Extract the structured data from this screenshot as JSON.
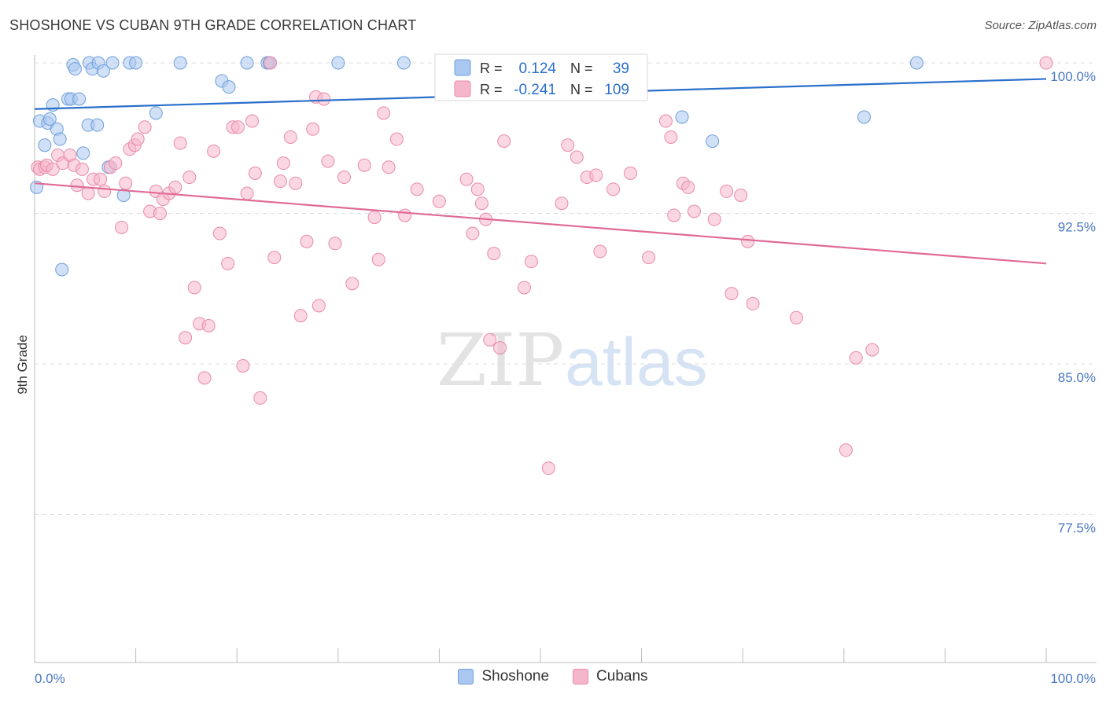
{
  "title": "SHOSHONE VS CUBAN 9TH GRADE CORRELATION CHART",
  "source": "Source: ZipAtlas.com",
  "watermark": {
    "zip": "ZIP",
    "atlas": "atlas"
  },
  "colors": {
    "shoshone_fill": "#a9c7ef",
    "shoshone_stroke": "#6f9fdc",
    "shoshone_line": "#2a6fcb",
    "cubans_fill": "#f5b6cb",
    "cubans_stroke": "#e98aaa",
    "cubans_line": "#e06a96",
    "tick_text": "#4a78c2",
    "grid": "#dddddd"
  },
  "legend": {
    "rows": [
      {
        "r_label": "R =",
        "r_value": "0.124",
        "n_label": "N =",
        "n_value": "39"
      },
      {
        "r_label": "R =",
        "r_value": "-0.241",
        "n_label": "N =",
        "n_value": "109"
      }
    ]
  },
  "chart_data": {
    "type": "scatter",
    "title": "SHOSHONE VS CUBAN 9TH GRADE CORRELATION CHART",
    "xlabel": "",
    "ylabel": "9th Grade",
    "xlim": [
      0,
      100
    ],
    "ylim": [
      71,
      101.2
    ],
    "x_tick_labels": [
      "0.0%",
      "100.0%"
    ],
    "y_ticks": [
      {
        "value": 100,
        "label": "100.0%"
      },
      {
        "value": 92.5,
        "label": "92.5%"
      },
      {
        "value": 85,
        "label": "85.0%"
      },
      {
        "value": 77.5,
        "label": "77.5%"
      }
    ],
    "grid": true,
    "legend_position": "top-center",
    "series": [
      {
        "name": "Shoshone",
        "r": 0.124,
        "n": 39,
        "trend": {
          "x": [
            0,
            100
          ],
          "y": [
            97.7,
            99.2
          ]
        },
        "points": [
          {
            "x": 0.2,
            "y": 93.8
          },
          {
            "x": 0.5,
            "y": 97.1
          },
          {
            "x": 1.0,
            "y": 95.9
          },
          {
            "x": 1.3,
            "y": 97.0
          },
          {
            "x": 1.5,
            "y": 97.2
          },
          {
            "x": 1.8,
            "y": 97.9
          },
          {
            "x": 2.2,
            "y": 96.7
          },
          {
            "x": 2.5,
            "y": 96.2
          },
          {
            "x": 2.7,
            "y": 89.7
          },
          {
            "x": 3.3,
            "y": 98.2
          },
          {
            "x": 3.6,
            "y": 98.2
          },
          {
            "x": 3.8,
            "y": 99.9
          },
          {
            "x": 4.0,
            "y": 99.7
          },
          {
            "x": 4.4,
            "y": 98.2
          },
          {
            "x": 4.8,
            "y": 95.5
          },
          {
            "x": 5.3,
            "y": 96.9
          },
          {
            "x": 5.4,
            "y": 100.0
          },
          {
            "x": 5.7,
            "y": 99.7
          },
          {
            "x": 6.2,
            "y": 96.9
          },
          {
            "x": 6.3,
            "y": 100.0
          },
          {
            "x": 6.8,
            "y": 99.6
          },
          {
            "x": 7.3,
            "y": 94.8
          },
          {
            "x": 7.7,
            "y": 100.0
          },
          {
            "x": 8.8,
            "y": 93.4
          },
          {
            "x": 9.4,
            "y": 100.0
          },
          {
            "x": 10.0,
            "y": 100.0
          },
          {
            "x": 12.0,
            "y": 97.5
          },
          {
            "x": 14.4,
            "y": 100.0
          },
          {
            "x": 18.5,
            "y": 99.1
          },
          {
            "x": 19.2,
            "y": 98.8
          },
          {
            "x": 21.0,
            "y": 100.0
          },
          {
            "x": 23.0,
            "y": 100.0
          },
          {
            "x": 23.2,
            "y": 100.0
          },
          {
            "x": 30.0,
            "y": 100.0
          },
          {
            "x": 36.5,
            "y": 100.0
          },
          {
            "x": 64.0,
            "y": 97.3
          },
          {
            "x": 67.0,
            "y": 96.1
          },
          {
            "x": 82.0,
            "y": 97.3
          },
          {
            "x": 87.2,
            "y": 100.0
          }
        ]
      },
      {
        "name": "Cubans",
        "r": -0.241,
        "n": 109,
        "trend": {
          "x": [
            0,
            100
          ],
          "y": [
            94.0,
            90.0
          ]
        },
        "points": [
          {
            "x": 0.3,
            "y": 94.8
          },
          {
            "x": 0.5,
            "y": 94.7
          },
          {
            "x": 1.0,
            "y": 94.8
          },
          {
            "x": 1.2,
            "y": 94.9
          },
          {
            "x": 1.8,
            "y": 94.7
          },
          {
            "x": 2.3,
            "y": 95.4
          },
          {
            "x": 2.8,
            "y": 95.0
          },
          {
            "x": 3.5,
            "y": 95.4
          },
          {
            "x": 3.9,
            "y": 94.9
          },
          {
            "x": 4.2,
            "y": 93.9
          },
          {
            "x": 4.7,
            "y": 94.7
          },
          {
            "x": 5.3,
            "y": 93.5
          },
          {
            "x": 5.8,
            "y": 94.2
          },
          {
            "x": 6.5,
            "y": 94.2
          },
          {
            "x": 6.9,
            "y": 93.6
          },
          {
            "x": 7.5,
            "y": 94.8
          },
          {
            "x": 8.0,
            "y": 95.0
          },
          {
            "x": 8.6,
            "y": 91.8
          },
          {
            "x": 9.0,
            "y": 94.0
          },
          {
            "x": 9.4,
            "y": 95.7
          },
          {
            "x": 9.9,
            "y": 95.9
          },
          {
            "x": 10.2,
            "y": 96.2
          },
          {
            "x": 10.9,
            "y": 96.8
          },
          {
            "x": 11.4,
            "y": 92.6
          },
          {
            "x": 12.0,
            "y": 93.6
          },
          {
            "x": 12.4,
            "y": 92.5
          },
          {
            "x": 12.7,
            "y": 93.2
          },
          {
            "x": 13.3,
            "y": 93.5
          },
          {
            "x": 13.9,
            "y": 93.8
          },
          {
            "x": 14.4,
            "y": 96.0
          },
          {
            "x": 14.9,
            "y": 86.3
          },
          {
            "x": 15.3,
            "y": 94.3
          },
          {
            "x": 15.8,
            "y": 88.8
          },
          {
            "x": 16.3,
            "y": 87.0
          },
          {
            "x": 16.8,
            "y": 84.3
          },
          {
            "x": 17.2,
            "y": 86.9
          },
          {
            "x": 17.7,
            "y": 95.6
          },
          {
            "x": 18.3,
            "y": 91.5
          },
          {
            "x": 19.1,
            "y": 90.0
          },
          {
            "x": 19.6,
            "y": 96.8
          },
          {
            "x": 20.1,
            "y": 96.8
          },
          {
            "x": 20.6,
            "y": 84.9
          },
          {
            "x": 21.0,
            "y": 93.5
          },
          {
            "x": 21.5,
            "y": 97.1
          },
          {
            "x": 21.8,
            "y": 94.5
          },
          {
            "x": 22.3,
            "y": 83.3
          },
          {
            "x": 23.3,
            "y": 100.0
          },
          {
            "x": 23.7,
            "y": 90.3
          },
          {
            "x": 24.3,
            "y": 94.1
          },
          {
            "x": 24.6,
            "y": 95.0
          },
          {
            "x": 25.3,
            "y": 96.3
          },
          {
            "x": 25.8,
            "y": 94.0
          },
          {
            "x": 26.3,
            "y": 87.4
          },
          {
            "x": 26.9,
            "y": 91.1
          },
          {
            "x": 27.5,
            "y": 96.7
          },
          {
            "x": 27.8,
            "y": 98.3
          },
          {
            "x": 28.1,
            "y": 87.9
          },
          {
            "x": 28.6,
            "y": 98.2
          },
          {
            "x": 29.0,
            "y": 95.1
          },
          {
            "x": 29.7,
            "y": 91.0
          },
          {
            "x": 30.6,
            "y": 94.3
          },
          {
            "x": 31.4,
            "y": 89.0
          },
          {
            "x": 32.6,
            "y": 94.9
          },
          {
            "x": 33.6,
            "y": 92.3
          },
          {
            "x": 34.0,
            "y": 90.2
          },
          {
            "x": 34.5,
            "y": 97.5
          },
          {
            "x": 35.0,
            "y": 94.8
          },
          {
            "x": 35.8,
            "y": 96.2
          },
          {
            "x": 36.6,
            "y": 92.4
          },
          {
            "x": 37.8,
            "y": 93.7
          },
          {
            "x": 40.0,
            "y": 93.1
          },
          {
            "x": 42.7,
            "y": 94.2
          },
          {
            "x": 43.3,
            "y": 91.5
          },
          {
            "x": 43.8,
            "y": 93.7
          },
          {
            "x": 44.2,
            "y": 93.0
          },
          {
            "x": 44.6,
            "y": 92.2
          },
          {
            "x": 45.0,
            "y": 86.2
          },
          {
            "x": 45.4,
            "y": 90.5
          },
          {
            "x": 46.0,
            "y": 85.8
          },
          {
            "x": 46.4,
            "y": 96.1
          },
          {
            "x": 48.4,
            "y": 88.8
          },
          {
            "x": 49.1,
            "y": 90.1
          },
          {
            "x": 50.8,
            "y": 79.8
          },
          {
            "x": 52.1,
            "y": 93.0
          },
          {
            "x": 52.7,
            "y": 95.9
          },
          {
            "x": 53.6,
            "y": 95.3
          },
          {
            "x": 54.6,
            "y": 94.3
          },
          {
            "x": 55.5,
            "y": 94.4
          },
          {
            "x": 55.9,
            "y": 90.6
          },
          {
            "x": 57.2,
            "y": 93.7
          },
          {
            "x": 58.9,
            "y": 94.5
          },
          {
            "x": 60.7,
            "y": 90.3
          },
          {
            "x": 62.4,
            "y": 97.1
          },
          {
            "x": 62.9,
            "y": 96.3
          },
          {
            "x": 63.2,
            "y": 92.4
          },
          {
            "x": 64.1,
            "y": 94.0
          },
          {
            "x": 64.6,
            "y": 93.8
          },
          {
            "x": 65.2,
            "y": 92.6
          },
          {
            "x": 67.2,
            "y": 92.2
          },
          {
            "x": 68.4,
            "y": 93.6
          },
          {
            "x": 68.9,
            "y": 88.5
          },
          {
            "x": 69.8,
            "y": 93.4
          },
          {
            "x": 70.5,
            "y": 91.1
          },
          {
            "x": 71.0,
            "y": 88.0
          },
          {
            "x": 75.3,
            "y": 87.3
          },
          {
            "x": 80.2,
            "y": 80.7
          },
          {
            "x": 81.2,
            "y": 85.3
          },
          {
            "x": 82.8,
            "y": 85.7
          },
          {
            "x": 100.0,
            "y": 100.0
          }
        ]
      }
    ]
  }
}
